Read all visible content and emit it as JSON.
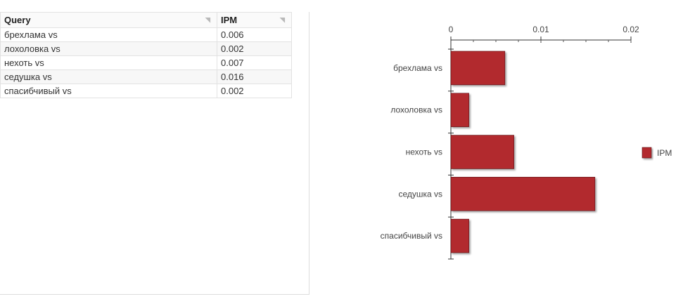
{
  "table": {
    "columns": [
      "Query",
      "IPM"
    ],
    "rows": [
      {
        "query": "брехлама vs",
        "ipm": "0.006"
      },
      {
        "query": "лохоловка vs",
        "ipm": "0.002"
      },
      {
        "query": "нехоть vs",
        "ipm": "0.007"
      },
      {
        "query": "седушка vs",
        "ipm": "0.016"
      },
      {
        "query": "спасибчивый vs",
        "ipm": "0.002"
      }
    ]
  },
  "chart_data": {
    "type": "bar",
    "orientation": "horizontal",
    "categories": [
      "брехлама vs",
      "лохоловка vs",
      "нехоть vs",
      "седушка vs",
      "спасибчивый vs"
    ],
    "series": [
      {
        "name": "IPM",
        "values": [
          0.006,
          0.002,
          0.007,
          0.016,
          0.002
        ],
        "color": "#b22a2e"
      }
    ],
    "x_ticks": [
      "0",
      "0.01",
      "0.02"
    ],
    "xlim": [
      0,
      0.02
    ],
    "legend_position": "right",
    "title": "",
    "xlabel": "",
    "ylabel": ""
  }
}
